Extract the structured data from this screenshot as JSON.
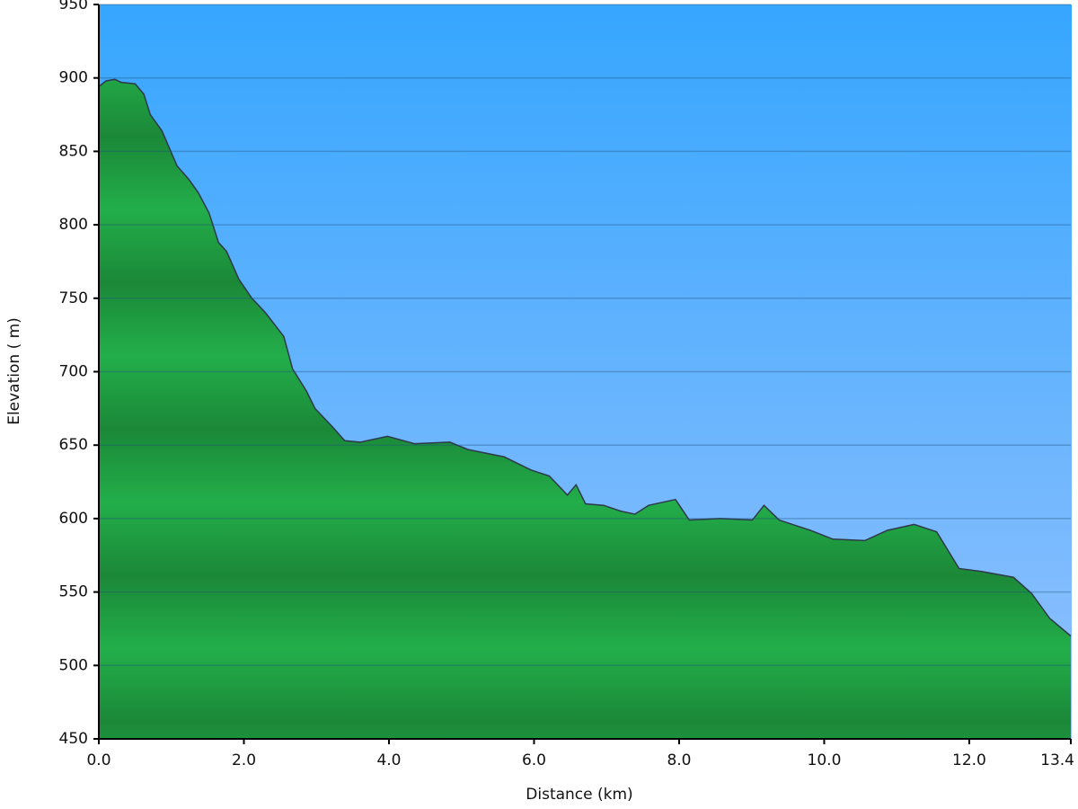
{
  "chart_data": {
    "type": "area",
    "xlabel": "Distance   (km)",
    "ylabel": "Elevation ( m)",
    "x": [
      0,
      0.1,
      0.22,
      0.31,
      0.5,
      0.62,
      0.71,
      0.87,
      1.08,
      1.24,
      1.37,
      1.52,
      1.65,
      1.76,
      1.93,
      2.11,
      2.3,
      2.55,
      2.67,
      2.86,
      2.98,
      3.23,
      3.39,
      3.6,
      3.98,
      4.35,
      4.84,
      5.09,
      5.59,
      5.96,
      6.21,
      6.46,
      6.58,
      6.71,
      6.96,
      7.2,
      7.39,
      7.58,
      7.95,
      8.14,
      8.57,
      9.01,
      9.17,
      9.38,
      9.81,
      10.12,
      10.56,
      10.87,
      11.24,
      11.55,
      11.86,
      12.17,
      12.61,
      12.86,
      13.11,
      13.4
    ],
    "values": [
      894,
      898,
      899,
      897,
      896,
      889,
      875,
      864,
      840,
      831,
      822,
      808,
      788,
      782,
      763,
      750,
      740,
      724,
      702,
      687,
      675,
      662,
      653,
      652,
      656,
      651,
      652,
      647,
      642,
      633,
      629,
      616,
      623,
      610,
      609,
      605,
      603,
      609,
      613,
      599,
      600,
      599,
      609,
      599,
      592,
      586,
      585,
      592,
      596,
      591,
      566,
      564,
      560,
      549,
      532,
      520
    ],
    "color": "#22ad48",
    "xlim": [
      0,
      13.4
    ],
    "ylim": [
      450,
      950
    ],
    "xticks": [
      {
        "value": 0,
        "label": "0.0"
      },
      {
        "value": 2,
        "label": "2.0"
      },
      {
        "value": 4,
        "label": "4.0"
      },
      {
        "value": 6,
        "label": "6.0"
      },
      {
        "value": 8,
        "label": "8.0"
      },
      {
        "value": 10,
        "label": "10.0"
      },
      {
        "value": 12,
        "label": "12.0"
      },
      {
        "value": 13.4,
        "label": "13.4"
      }
    ],
    "yticks": [
      450,
      500,
      550,
      600,
      650,
      700,
      750,
      800,
      850,
      900,
      950
    ],
    "grid": true
  }
}
